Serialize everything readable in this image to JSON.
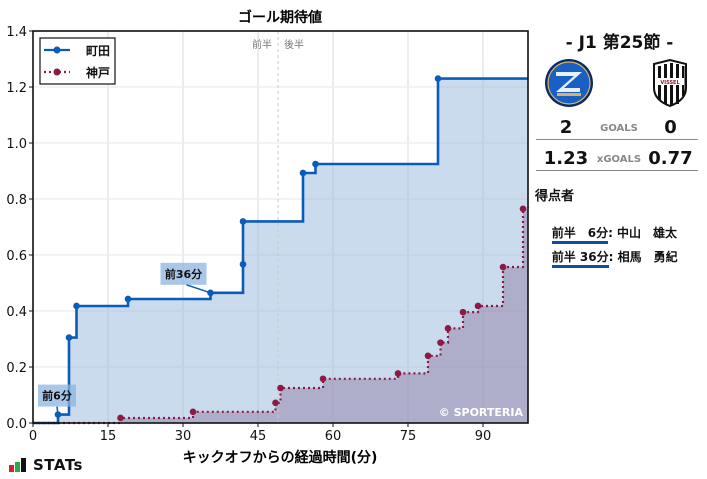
{
  "chart_data": {
    "type": "line",
    "title": "ゴール期待値",
    "xlabel": "キックオフからの経過時間(分)",
    "ylabel": "",
    "xlim": [
      0,
      99
    ],
    "ylim": [
      0,
      1.4
    ],
    "xticks": [
      0,
      15,
      30,
      45,
      60,
      75,
      90
    ],
    "yticks": [
      0.0,
      0.2,
      0.4,
      0.6,
      0.8,
      1.0,
      1.2,
      1.4
    ],
    "grid": true,
    "legend_position": "upper left",
    "step": true,
    "halftime_marker": {
      "x": 49,
      "label_left": "前半",
      "label_right": "後半"
    },
    "series": [
      {
        "name": "町田",
        "color": "#0b5cb8",
        "style": "solid",
        "points": [
          [
            0,
            0
          ],
          [
            5,
            0.03
          ],
          [
            7.2,
            0.305
          ],
          [
            8.7,
            0.418
          ],
          [
            19,
            0.443
          ],
          [
            35.5,
            0.465
          ],
          [
            42,
            0.567
          ],
          [
            42,
            0.72
          ],
          [
            54,
            0.893
          ],
          [
            56.5,
            0.925
          ],
          [
            81,
            1.23
          ],
          [
            99,
            1.23
          ]
        ]
      },
      {
        "name": "神戸",
        "color": "#8b1a45",
        "style": "dotted",
        "points": [
          [
            0,
            0
          ],
          [
            17.5,
            0.018
          ],
          [
            32,
            0.04
          ],
          [
            48.5,
            0.072
          ],
          [
            49.5,
            0.125
          ],
          [
            58,
            0.158
          ],
          [
            73,
            0.177
          ],
          [
            79,
            0.24
          ],
          [
            81.5,
            0.287
          ],
          [
            83,
            0.338
          ],
          [
            86,
            0.396
          ],
          [
            89,
            0.418
          ],
          [
            94,
            0.557
          ],
          [
            98,
            0.765
          ],
          [
            99,
            0.77
          ]
        ]
      }
    ],
    "annotations": [
      {
        "text": "前6分",
        "x": 5,
        "y": 0.03
      },
      {
        "text": "前36分",
        "x": 35.5,
        "y": 0.465
      }
    ],
    "watermark": "© SPORTERIA"
  },
  "match": {
    "round": "- J1 第25節 -",
    "home_logo": "zelvia-emblem",
    "away_logo": "vissel-emblem",
    "goals_label": "GOALS",
    "home_goals": "2",
    "away_goals": "0",
    "xgoals_label": "xGOALS",
    "home_xg": "1.23",
    "away_xg": "0.77"
  },
  "scorers": {
    "title": "得点者",
    "items": [
      {
        "when": "前半　6分",
        "name": ": 中山　雄太"
      },
      {
        "when": "前半 36分",
        "name": ": 相馬　勇紀"
      }
    ]
  },
  "brand": {
    "logo_text": "STATs",
    "colors": [
      "#d61f26",
      "#2aa84a",
      "#111111"
    ]
  }
}
